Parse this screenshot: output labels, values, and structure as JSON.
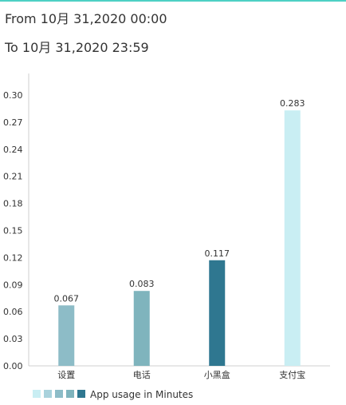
{
  "header": {
    "from_text": "From 10月 31,2020 00:00",
    "to_text": "To 10月 31,2020 23:59"
  },
  "colors": {
    "accent": "#4dd0c4",
    "axis": "#cfcfcf",
    "legend_swatches": [
      "#c9eef3",
      "#a9d2dc",
      "#8dbcc7",
      "#7fb4bd",
      "#2f7790"
    ]
  },
  "chart_data": {
    "type": "bar",
    "categories": [
      "设置",
      "电话",
      "小黑盒",
      "支付宝"
    ],
    "values": [
      0.067,
      0.083,
      0.117,
      0.283
    ],
    "value_labels": [
      "0.067",
      "0.083",
      "0.117",
      "0.283"
    ],
    "bar_colors": [
      "#8dbcc7",
      "#7fb4bd",
      "#2f7790",
      "#c9eef3"
    ],
    "ylim": [
      0,
      0.3
    ],
    "yticks": [
      "0.00",
      "0.03",
      "0.06",
      "0.09",
      "0.12",
      "0.15",
      "0.18",
      "0.21",
      "0.24",
      "0.27",
      "0.30"
    ],
    "legend": {
      "label": "App usage in Minutes",
      "position": "bottom-left"
    },
    "grid": false
  }
}
